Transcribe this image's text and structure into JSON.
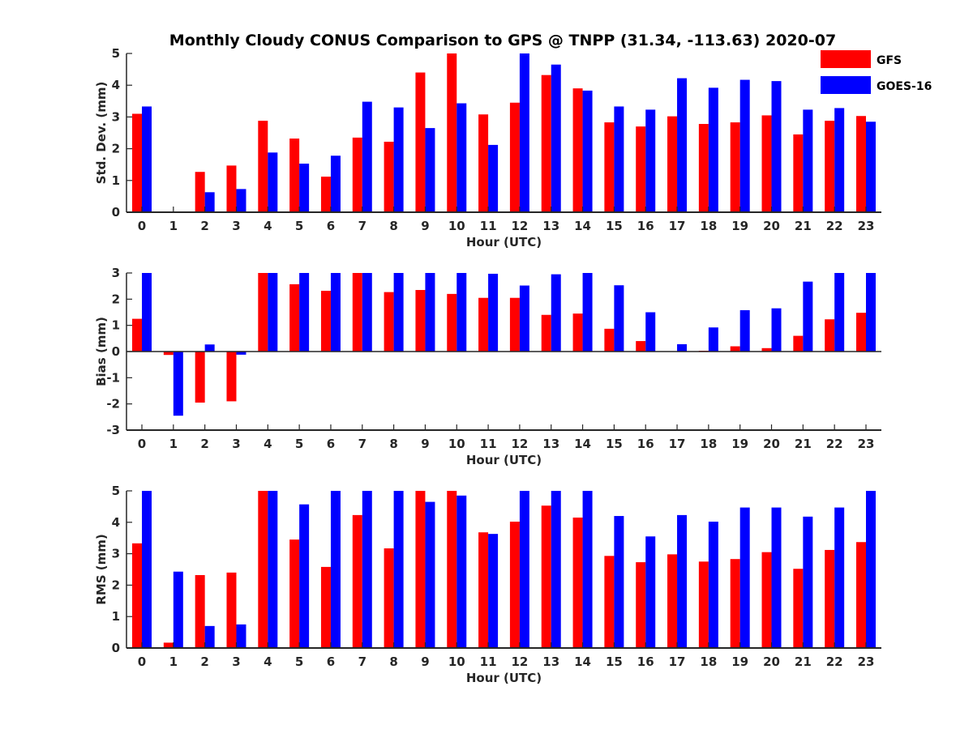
{
  "title": "Monthly Cloudy CONUS Comparison to GPS @ TNPP (31.34, -113.63) 2020-07",
  "legend": [
    {
      "name": "GFS",
      "color": "#ff0000"
    },
    {
      "name": "GOES-16",
      "color": "#0000ff"
    }
  ],
  "chart_data": [
    {
      "type": "bar",
      "xlabel": "Hour (UTC)",
      "ylabel": "Std. Dev. (mm)",
      "ylim": [
        0,
        5
      ],
      "yticks": [
        "0",
        "1",
        "2",
        "3",
        "4",
        "5"
      ],
      "categories": [
        "0",
        "1",
        "2",
        "3",
        "4",
        "5",
        "6",
        "7",
        "8",
        "9",
        "10",
        "11",
        "12",
        "13",
        "14",
        "15",
        "16",
        "17",
        "18",
        "19",
        "20",
        "21",
        "22",
        "23"
      ],
      "series": [
        {
          "name": "GFS",
          "color": "#ff0000",
          "values": [
            3.1,
            0,
            1.27,
            1.47,
            2.88,
            2.32,
            1.12,
            2.35,
            2.22,
            4.4,
            5.0,
            3.08,
            3.45,
            4.32,
            3.9,
            2.83,
            2.7,
            3.02,
            2.78,
            2.83,
            3.05,
            2.45,
            2.88,
            3.03
          ]
        },
        {
          "name": "GOES-16",
          "color": "#0000ff",
          "values": [
            3.33,
            0,
            0.63,
            0.73,
            1.88,
            1.53,
            1.78,
            3.48,
            3.3,
            2.65,
            3.43,
            2.12,
            5.0,
            4.65,
            3.83,
            3.33,
            3.23,
            4.22,
            3.92,
            4.17,
            4.13,
            3.23,
            3.28,
            2.85
          ]
        }
      ],
      "grid": false,
      "legend_position": "top-right"
    },
    {
      "type": "bar",
      "xlabel": "Hour (UTC)",
      "ylabel": "Bias (mm)",
      "ylim": [
        -3,
        3
      ],
      "yticks": [
        "-3",
        "-2",
        "-1",
        "0",
        "1",
        "2",
        "3"
      ],
      "categories": [
        "0",
        "1",
        "2",
        "3",
        "4",
        "5",
        "6",
        "7",
        "8",
        "9",
        "10",
        "11",
        "12",
        "13",
        "14",
        "15",
        "16",
        "17",
        "18",
        "19",
        "20",
        "21",
        "22",
        "23"
      ],
      "series": [
        {
          "name": "GFS",
          "color": "#ff0000",
          "values": [
            1.25,
            -0.13,
            -1.95,
            -1.9,
            3.0,
            2.57,
            2.32,
            3.0,
            2.27,
            2.35,
            2.2,
            2.05,
            2.05,
            1.4,
            1.45,
            0.87,
            0.4,
            0,
            0.03,
            0.2,
            0.13,
            0.6,
            1.23,
            1.48
          ]
        },
        {
          "name": "GOES-16",
          "color": "#0000ff",
          "values": [
            3.0,
            -2.45,
            0.27,
            -0.12,
            3.0,
            3.0,
            3.0,
            3.0,
            3.0,
            3.0,
            3.0,
            2.97,
            2.52,
            2.95,
            3.0,
            2.53,
            1.5,
            0.28,
            0.92,
            1.58,
            1.65,
            2.67,
            3.0,
            3.0
          ]
        }
      ],
      "grid": false
    },
    {
      "type": "bar",
      "xlabel": "Hour (UTC)",
      "ylabel": "RMS (mm)",
      "ylim": [
        0,
        5
      ],
      "yticks": [
        "0",
        "1",
        "2",
        "3",
        "4",
        "5"
      ],
      "categories": [
        "0",
        "1",
        "2",
        "3",
        "4",
        "5",
        "6",
        "7",
        "8",
        "9",
        "10",
        "11",
        "12",
        "13",
        "14",
        "15",
        "16",
        "17",
        "18",
        "19",
        "20",
        "21",
        "22",
        "23"
      ],
      "series": [
        {
          "name": "GFS",
          "color": "#ff0000",
          "values": [
            3.33,
            0.17,
            2.32,
            2.4,
            5.0,
            3.45,
            2.58,
            4.23,
            3.17,
            5.0,
            5.0,
            3.68,
            4.02,
            4.53,
            4.15,
            2.93,
            2.73,
            2.98,
            2.75,
            2.83,
            3.05,
            2.52,
            3.12,
            3.37
          ]
        },
        {
          "name": "GOES-16",
          "color": "#0000ff",
          "values": [
            5.0,
            2.43,
            0.7,
            0.75,
            5.0,
            4.57,
            5.0,
            5.0,
            5.0,
            4.65,
            4.85,
            3.63,
            5.0,
            5.0,
            5.0,
            4.2,
            3.55,
            4.23,
            4.02,
            4.47,
            4.47,
            4.18,
            4.47,
            5.0
          ]
        }
      ],
      "grid": false
    }
  ]
}
